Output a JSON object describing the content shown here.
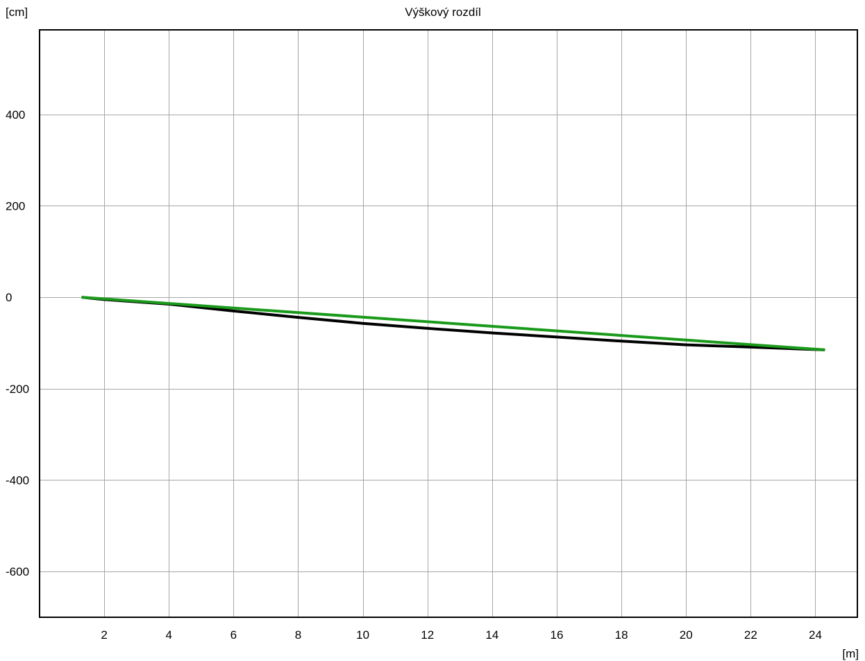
{
  "chart_data": {
    "type": "line",
    "title": "Výškový rozdíl",
    "xlabel": "[m]",
    "ylabel": "[cm]",
    "xlim": [
      0,
      25.3
    ],
    "ylim": [
      -700,
      585
    ],
    "xticks": [
      2,
      4,
      6,
      8,
      10,
      12,
      14,
      16,
      18,
      20,
      22,
      24
    ],
    "yticks": [
      -600,
      -400,
      -200,
      0,
      200,
      400
    ],
    "grid": true,
    "legend": "none",
    "series": [
      {
        "color": "#000000",
        "x": [
          1.3,
          2,
          4,
          6,
          8,
          10,
          12,
          14,
          16,
          18,
          20,
          22,
          24.3
        ],
        "values": [
          0,
          -5,
          -15,
          -30,
          -44,
          -57,
          -68,
          -78,
          -87,
          -96,
          -104,
          -109,
          -115
        ]
      },
      {
        "color": "#1a9a1a",
        "x": [
          1.3,
          24.3
        ],
        "values": [
          0,
          -115
        ]
      }
    ]
  }
}
